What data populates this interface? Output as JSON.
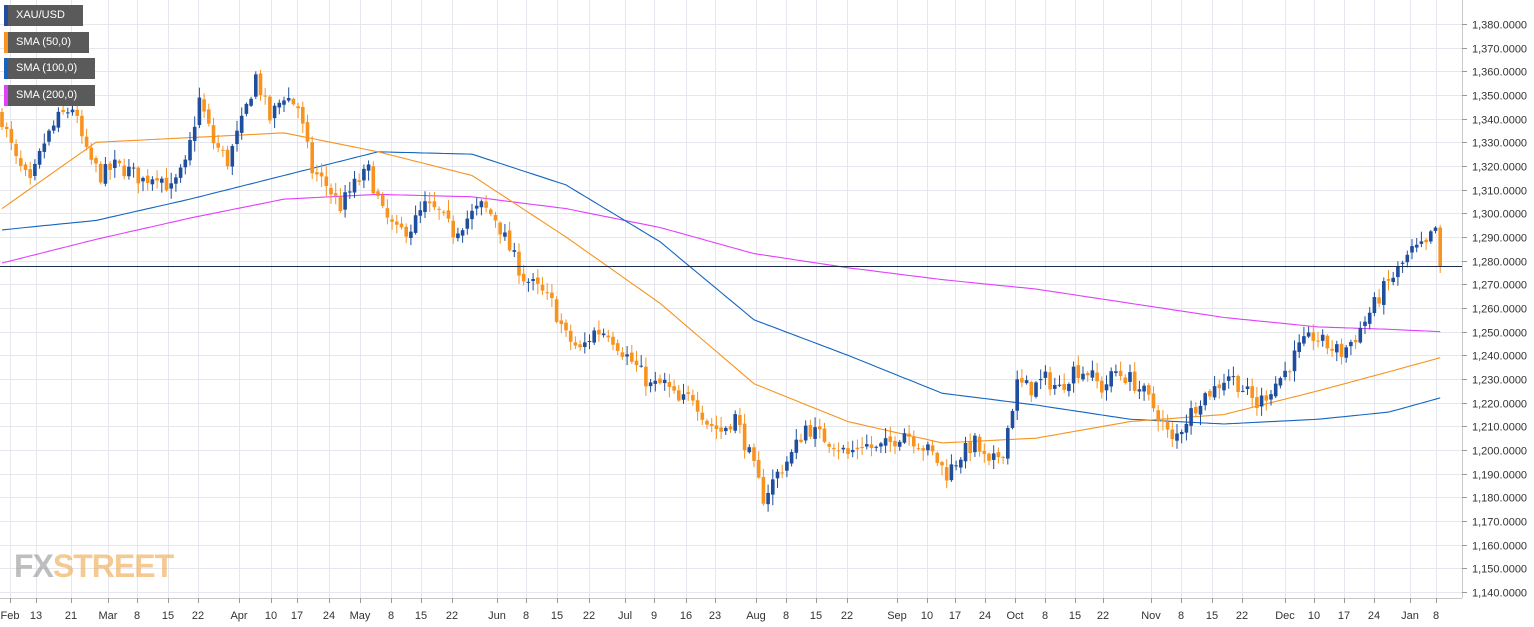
{
  "legend": [
    {
      "label": "XAU/USD",
      "color": "#1f4e9c"
    },
    {
      "label": "SMA (50,0)",
      "color": "#f7931e"
    },
    {
      "label": "SMA (100,0)",
      "color": "#1565c0"
    },
    {
      "label": "SMA (200,0)",
      "color": "#e040fb"
    }
  ],
  "watermark": {
    "part1": "FX",
    "part2": "STREET"
  },
  "current_price_label": "1,277.65000",
  "colors": {
    "bull": "#1f4e9c",
    "bear": "#f7931e",
    "sma50": "#f7931e",
    "sma100": "#1565c0",
    "sma200": "#e040fb",
    "grid": "#e6e6ee",
    "price_line": "#1a2a4a"
  },
  "chart_data": {
    "type": "candlestick",
    "symbol": "XAU/USD",
    "ylim": [
      1135,
      1390
    ],
    "y_ticks": [
      "1,380.0000",
      "1,370.0000",
      "1,360.0000",
      "1,350.0000",
      "1,340.0000",
      "1,330.0000",
      "1,320.0000",
      "1,310.0000",
      "1,300.0000",
      "1,290.0000",
      "1,280.0000",
      "1,270.0000",
      "1,260.0000",
      "1,250.0000",
      "1,240.0000",
      "1,230.0000",
      "1,220.0000",
      "1,210.0000",
      "1,200.0000",
      "1,190.0000",
      "1,180.0000",
      "1,170.0000",
      "1,160.0000",
      "1,150.0000",
      "1,140.0000"
    ],
    "y_tick_values": [
      1380,
      1370,
      1360,
      1350,
      1340,
      1330,
      1320,
      1310,
      1300,
      1290,
      1280,
      1270,
      1260,
      1250,
      1240,
      1230,
      1220,
      1210,
      1200,
      1190,
      1180,
      1170,
      1160,
      1150,
      1140
    ],
    "x_tick_labels": [
      "Feb",
      "13",
      "21",
      "Mar",
      "8",
      "15",
      "22",
      "Apr",
      "10",
      "17",
      "24",
      "May",
      "8",
      "15",
      "22",
      "Jun",
      "8",
      "15",
      "22",
      "Jul",
      "9",
      "16",
      "23",
      "Aug",
      "8",
      "15",
      "22",
      "Sep",
      "10",
      "17",
      "24",
      "Oct",
      "8",
      "15",
      "22",
      "Nov",
      "8",
      "15",
      "22",
      "Dec",
      "10",
      "17",
      "24",
      "Jan",
      "8"
    ],
    "current_price": 1277.65,
    "close_anchors": [
      [
        0,
        1340
      ],
      [
        3,
        1322
      ],
      [
        6,
        1312
      ],
      [
        9,
        1330
      ],
      [
        12,
        1340
      ],
      [
        15,
        1345
      ],
      [
        18,
        1325
      ],
      [
        21,
        1316
      ],
      [
        24,
        1320
      ],
      [
        27,
        1318
      ],
      [
        30,
        1314
      ],
      [
        33,
        1317
      ],
      [
        36,
        1310
      ],
      [
        39,
        1320
      ],
      [
        42,
        1348
      ],
      [
        45,
        1330
      ],
      [
        48,
        1322
      ],
      [
        51,
        1338
      ],
      [
        54,
        1358
      ],
      [
        57,
        1340
      ],
      [
        60,
        1350
      ],
      [
        63,
        1345
      ],
      [
        66,
        1318
      ],
      [
        69,
        1312
      ],
      [
        72,
        1303
      ],
      [
        75,
        1312
      ],
      [
        78,
        1318
      ],
      [
        81,
        1300
      ],
      [
        84,
        1292
      ],
      [
        87,
        1294
      ],
      [
        90,
        1303
      ],
      [
        93,
        1300
      ],
      [
        96,
        1292
      ],
      [
        99,
        1298
      ],
      [
        102,
        1303
      ],
      [
        105,
        1298
      ],
      [
        108,
        1285
      ],
      [
        111,
        1273
      ],
      [
        114,
        1268
      ],
      [
        117,
        1262
      ],
      [
        120,
        1248
      ],
      [
        123,
        1242
      ],
      [
        126,
        1250
      ],
      [
        129,
        1250
      ],
      [
        132,
        1242
      ],
      [
        135,
        1235
      ],
      [
        138,
        1227
      ],
      [
        141,
        1228
      ],
      [
        144,
        1220
      ],
      [
        147,
        1223
      ],
      [
        150,
        1212
      ],
      [
        153,
        1208
      ],
      [
        156,
        1214
      ],
      [
        159,
        1198
      ],
      [
        162,
        1180
      ],
      [
        165,
        1190
      ],
      [
        168,
        1198
      ],
      [
        171,
        1210
      ],
      [
        174,
        1206
      ],
      [
        177,
        1203
      ],
      [
        180,
        1198
      ],
      [
        183,
        1203
      ],
      [
        186,
        1200
      ],
      [
        189,
        1203
      ],
      [
        192,
        1208
      ],
      [
        195,
        1203
      ],
      [
        198,
        1198
      ],
      [
        201,
        1190
      ],
      [
        204,
        1198
      ],
      [
        207,
        1203
      ],
      [
        210,
        1193
      ],
      [
        213,
        1200
      ],
      [
        216,
        1228
      ],
      [
        219,
        1226
      ],
      [
        222,
        1230
      ],
      [
        225,
        1226
      ],
      [
        228,
        1234
      ],
      [
        231,
        1233
      ],
      [
        234,
        1226
      ],
      [
        237,
        1233
      ],
      [
        240,
        1230
      ],
      [
        243,
        1224
      ],
      [
        246,
        1215
      ],
      [
        249,
        1203
      ],
      [
        252,
        1213
      ],
      [
        255,
        1222
      ],
      [
        258,
        1226
      ],
      [
        261,
        1232
      ],
      [
        264,
        1226
      ],
      [
        267,
        1219
      ],
      [
        270,
        1226
      ],
      [
        273,
        1233
      ],
      [
        276,
        1243
      ],
      [
        279,
        1248
      ],
      [
        282,
        1244
      ],
      [
        285,
        1241
      ],
      [
        288,
        1248
      ],
      [
        291,
        1258
      ],
      [
        294,
        1268
      ],
      [
        297,
        1276
      ],
      [
        300,
        1284
      ],
      [
        303,
        1286
      ],
      [
        305,
        1294
      ],
      [
        306,
        1278
      ]
    ],
    "sma50": [
      [
        0,
        1302
      ],
      [
        20,
        1330
      ],
      [
        40,
        1332
      ],
      [
        60,
        1334
      ],
      [
        80,
        1326
      ],
      [
        100,
        1316
      ],
      [
        120,
        1290
      ],
      [
        140,
        1262
      ],
      [
        160,
        1228
      ],
      [
        180,
        1212
      ],
      [
        200,
        1203
      ],
      [
        220,
        1205
      ],
      [
        240,
        1212
      ],
      [
        260,
        1215
      ],
      [
        280,
        1225
      ],
      [
        295,
        1233
      ],
      [
        306,
        1239
      ]
    ],
    "sma100": [
      [
        0,
        1293
      ],
      [
        20,
        1297
      ],
      [
        40,
        1306
      ],
      [
        60,
        1316
      ],
      [
        80,
        1326
      ],
      [
        100,
        1325
      ],
      [
        120,
        1312
      ],
      [
        140,
        1288
      ],
      [
        160,
        1255
      ],
      [
        180,
        1240
      ],
      [
        200,
        1224
      ],
      [
        220,
        1219
      ],
      [
        240,
        1213
      ],
      [
        260,
        1211
      ],
      [
        280,
        1213
      ],
      [
        295,
        1216
      ],
      [
        306,
        1222
      ]
    ],
    "sma200": [
      [
        0,
        1279
      ],
      [
        20,
        1289
      ],
      [
        40,
        1298
      ],
      [
        60,
        1306
      ],
      [
        80,
        1308
      ],
      [
        100,
        1307
      ],
      [
        120,
        1302
      ],
      [
        140,
        1294
      ],
      [
        160,
        1283
      ],
      [
        180,
        1277
      ],
      [
        200,
        1272
      ],
      [
        220,
        1268
      ],
      [
        240,
        1262
      ],
      [
        260,
        1256
      ],
      [
        280,
        1252
      ],
      [
        295,
        1251
      ],
      [
        306,
        1250
      ]
    ]
  }
}
